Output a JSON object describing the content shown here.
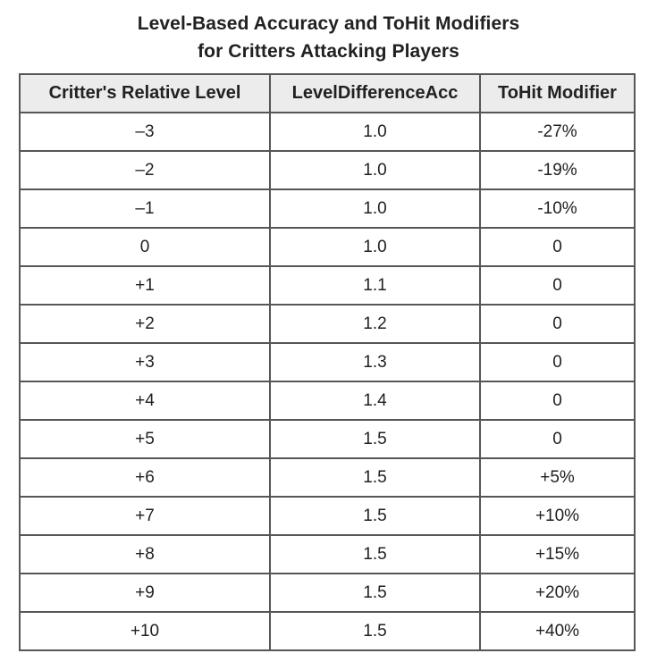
{
  "title": {
    "line1": "Level-Based Accuracy and ToHit Modifiers",
    "line2": "for Critters Attacking Players"
  },
  "table": {
    "columns": [
      "Critter's Relative Level",
      "LevelDifferenceAcc",
      "ToHit Modifier"
    ],
    "rows": [
      [
        "–3",
        "1.0",
        "-27%"
      ],
      [
        "–2",
        "1.0",
        "-19%"
      ],
      [
        "–1",
        "1.0",
        "-10%"
      ],
      [
        "0",
        "1.0",
        "0"
      ],
      [
        "+1",
        "1.1",
        "0"
      ],
      [
        "+2",
        "1.2",
        "0"
      ],
      [
        "+3",
        "1.3",
        "0"
      ],
      [
        "+4",
        "1.4",
        "0"
      ],
      [
        "+5",
        "1.5",
        "0"
      ],
      [
        "+6",
        "1.5",
        "+5%"
      ],
      [
        "+7",
        "1.5",
        "+10%"
      ],
      [
        "+8",
        "1.5",
        "+15%"
      ],
      [
        "+9",
        "1.5",
        "+20%"
      ],
      [
        "+10",
        "1.5",
        "+40%"
      ]
    ]
  },
  "colors": {
    "header_background": "#ececec",
    "border": "#565658",
    "text": "#212121",
    "page_background": "#ffffff"
  }
}
